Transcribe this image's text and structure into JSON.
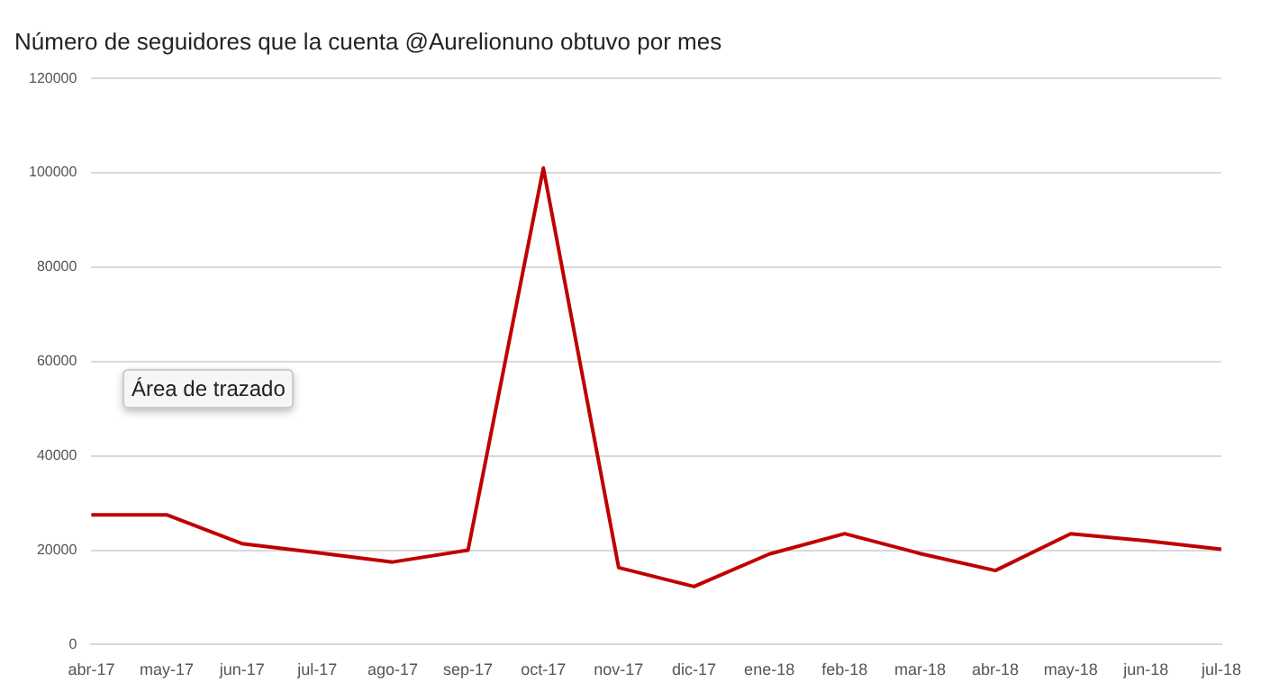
{
  "chart_data": {
    "type": "line",
    "title": "Número de seguidores que la cuenta @Aurelionuno obtuvo por mes",
    "categories": [
      "abr-17",
      "may-17",
      "jun-17",
      "jul-17",
      "ago-17",
      "sep-17",
      "oct-17",
      "nov-17",
      "dic-17",
      "ene-18",
      "feb-18",
      "mar-18",
      "abr-18",
      "may-18",
      "jun-18",
      "jul-18"
    ],
    "series": [
      {
        "color": "#c00000",
        "values": [
          27500,
          27500,
          21400,
          19500,
          17500,
          20000,
          101000,
          16300,
          12300,
          19200,
          23500,
          19300,
          15700,
          23500,
          22000,
          20200
        ]
      }
    ],
    "ylim": [
      0,
      120000
    ],
    "yticks": [
      0,
      20000,
      40000,
      60000,
      80000,
      100000,
      120000
    ],
    "grid": "y",
    "legend": false,
    "marker": "none",
    "line_style": "solid",
    "annotations": [
      "Área de trazado"
    ]
  }
}
